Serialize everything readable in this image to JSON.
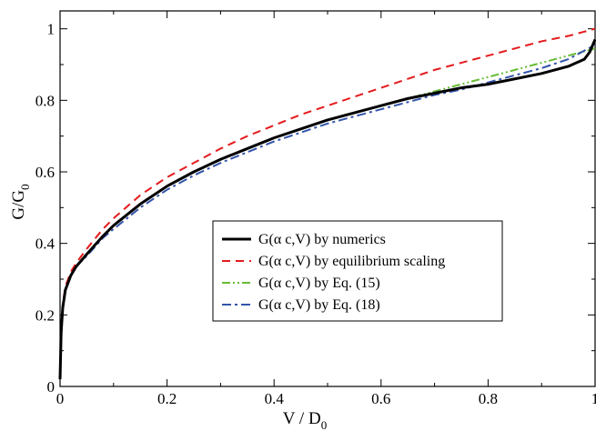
{
  "chart_data": {
    "type": "line",
    "xlabel": "V / D",
    "xlabel_sub": "0",
    "ylabel": "G/G",
    "ylabel_sub": "0",
    "xlim": [
      0,
      1
    ],
    "ylim": [
      0,
      1.05
    ],
    "x_ticks": [
      0,
      0.2,
      0.4,
      0.6,
      0.8,
      1
    ],
    "x_tick_labels": [
      "0",
      "0.2",
      "0.4",
      "0.6",
      "0.8",
      "1"
    ],
    "y_ticks": [
      0,
      0.2,
      0.4,
      0.6,
      0.8,
      1
    ],
    "y_tick_labels": [
      "0",
      "0.2",
      "0.4",
      "0.6",
      "0.8",
      "1"
    ],
    "grid": false,
    "legend_position": "center-right",
    "series": [
      {
        "name": "G(α c,V) by numerics",
        "color": "#000000",
        "style": "solid",
        "x": [
          0,
          0.002,
          0.005,
          0.01,
          0.02,
          0.03,
          0.05,
          0.08,
          0.1,
          0.15,
          0.2,
          0.25,
          0.3,
          0.35,
          0.4,
          0.45,
          0.5,
          0.55,
          0.6,
          0.65,
          0.7,
          0.75,
          0.8,
          0.85,
          0.9,
          0.95,
          0.98,
          0.99,
          1.0
        ],
        "y": [
          0.02,
          0.15,
          0.22,
          0.27,
          0.31,
          0.335,
          0.37,
          0.42,
          0.45,
          0.51,
          0.56,
          0.6,
          0.635,
          0.665,
          0.695,
          0.72,
          0.745,
          0.765,
          0.785,
          0.805,
          0.82,
          0.835,
          0.845,
          0.86,
          0.875,
          0.895,
          0.915,
          0.935,
          0.97
        ]
      },
      {
        "name": "G(α c,V) by equilibrium scaling",
        "color": "#e41a1c",
        "style": "dashed",
        "x": [
          0,
          0.002,
          0.005,
          0.01,
          0.02,
          0.03,
          0.05,
          0.08,
          0.1,
          0.15,
          0.2,
          0.25,
          0.3,
          0.35,
          0.4,
          0.45,
          0.5,
          0.55,
          0.6,
          0.65,
          0.7,
          0.75,
          0.8,
          0.85,
          0.9,
          0.95,
          1.0
        ],
        "y": [
          0.02,
          0.16,
          0.23,
          0.28,
          0.32,
          0.345,
          0.385,
          0.44,
          0.47,
          0.535,
          0.585,
          0.625,
          0.665,
          0.7,
          0.73,
          0.76,
          0.785,
          0.81,
          0.835,
          0.86,
          0.885,
          0.905,
          0.925,
          0.945,
          0.965,
          0.98,
          1.0
        ]
      },
      {
        "name": "G(α c,V) by Eq. (15)",
        "color": "#66bb33",
        "style": "dash-dot-dot",
        "x": [
          0,
          0.002,
          0.005,
          0.01,
          0.02,
          0.03,
          0.05,
          0.08,
          0.1,
          0.15,
          0.2,
          0.25,
          0.3,
          0.35,
          0.4,
          0.45,
          0.5,
          0.55,
          0.6,
          0.65,
          0.7,
          0.75,
          0.8,
          0.85,
          0.9,
          0.95,
          1.0
        ],
        "y": [
          0.02,
          0.15,
          0.22,
          0.27,
          0.31,
          0.335,
          0.37,
          0.42,
          0.45,
          0.51,
          0.56,
          0.6,
          0.635,
          0.665,
          0.695,
          0.72,
          0.745,
          0.765,
          0.785,
          0.805,
          0.825,
          0.845,
          0.865,
          0.885,
          0.905,
          0.925,
          0.945
        ]
      },
      {
        "name": "G(α c,V) by Eq. (18)",
        "color": "#3355aa",
        "style": "dash-dot",
        "x": [
          0,
          0.002,
          0.005,
          0.01,
          0.02,
          0.03,
          0.05,
          0.08,
          0.1,
          0.15,
          0.2,
          0.25,
          0.3,
          0.35,
          0.4,
          0.45,
          0.5,
          0.55,
          0.6,
          0.65,
          0.7,
          0.75,
          0.8,
          0.85,
          0.9,
          0.95,
          1.0
        ],
        "y": [
          0.02,
          0.15,
          0.22,
          0.27,
          0.31,
          0.335,
          0.365,
          0.415,
          0.44,
          0.5,
          0.55,
          0.59,
          0.625,
          0.655,
          0.685,
          0.71,
          0.735,
          0.755,
          0.775,
          0.795,
          0.815,
          0.83,
          0.85,
          0.87,
          0.89,
          0.915,
          0.955
        ]
      }
    ]
  }
}
